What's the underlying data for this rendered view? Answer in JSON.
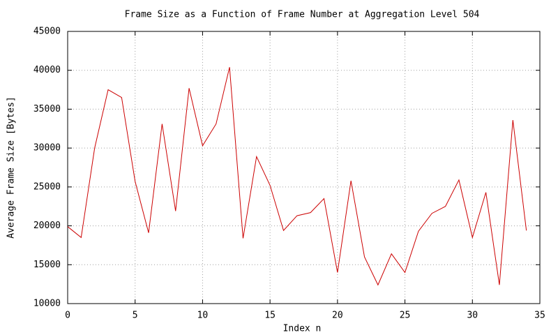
{
  "chart_data": {
    "type": "line",
    "title": "Frame Size as a Function of Frame Number at Aggregation Level 504",
    "x_label": "Index n",
    "y_label": "Average Frame Size [Bytes]",
    "x": [
      0,
      1,
      2,
      3,
      4,
      5,
      6,
      7,
      8,
      9,
      10,
      11,
      12,
      13,
      14,
      15,
      16,
      17,
      18,
      19,
      20,
      21,
      22,
      23,
      24,
      25,
      26,
      27,
      28,
      29,
      30,
      31,
      32,
      33,
      34
    ],
    "values": [
      19900,
      18500,
      30000,
      37500,
      36500,
      25700,
      19100,
      33100,
      21900,
      37700,
      30300,
      33100,
      40400,
      18400,
      28900,
      25200,
      19400,
      21300,
      21700,
      23500,
      14000,
      25800,
      16000,
      12400,
      16400,
      14000,
      19300,
      21600,
      22500,
      25900,
      18500,
      24300,
      12400,
      33600,
      19400
    ],
    "color": "#cc0000",
    "xlim": [
      0,
      35
    ],
    "xticks": [
      0,
      5,
      10,
      15,
      20,
      25,
      30,
      35
    ],
    "ylim": [
      10000,
      45000
    ],
    "yticks": [
      10000,
      15000,
      20000,
      25000,
      30000,
      35000,
      40000,
      45000
    ],
    "grid": true
  }
}
